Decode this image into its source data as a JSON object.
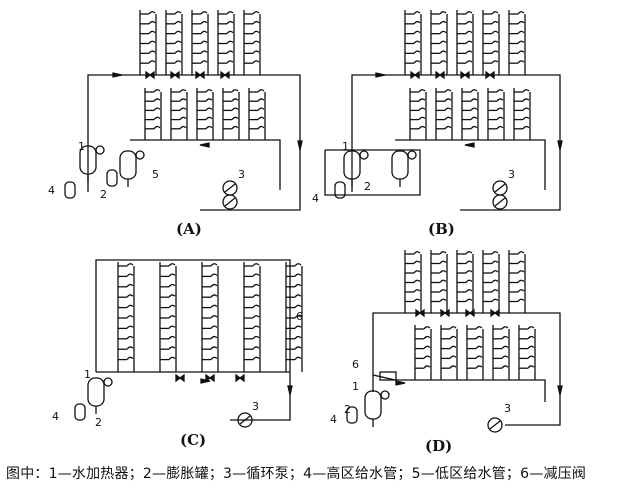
{
  "panels": [
    {
      "id": "A",
      "label": "(A)"
    },
    {
      "id": "B",
      "label": "(B)"
    },
    {
      "id": "C",
      "label": "(C)"
    },
    {
      "id": "D",
      "label": "(D)"
    }
  ],
  "component_numbers": [
    "1",
    "2",
    "3",
    "4",
    "5",
    "6"
  ],
  "caption": "图中：1—水加热器；2—膨胀罐；3—循环泵；4—高区给水管；5—低区给水管；6—减压阀"
}
